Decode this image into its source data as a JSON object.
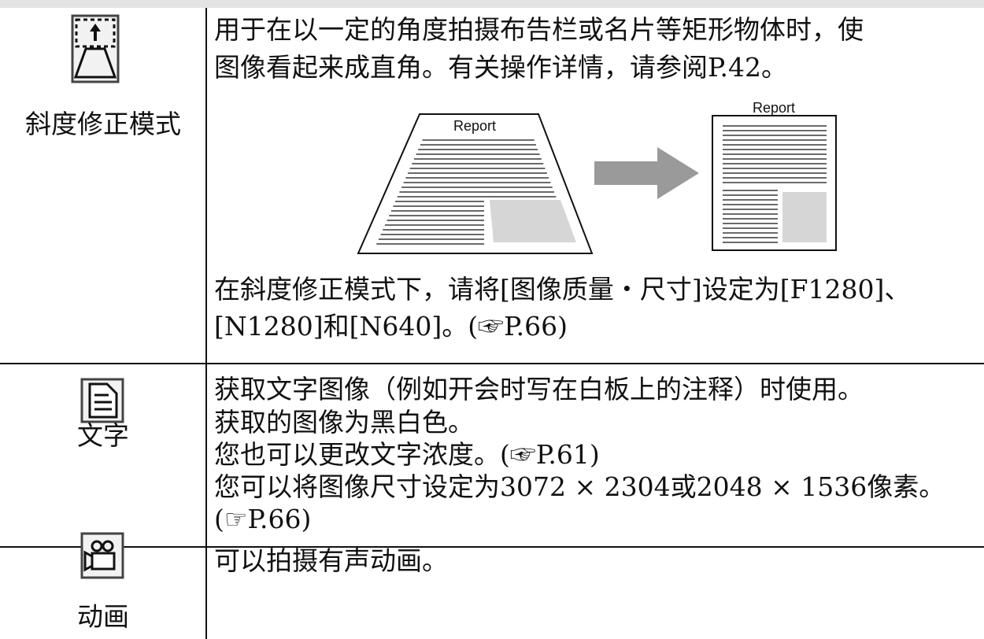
{
  "rows": [
    {
      "label": "斜度修正模式",
      "text": [
        "用于在以一定的角度拍摄布告栏或名片等矩形物体时，使",
        "图像看起来成直角。有关操作详情，请参阅P.42。"
      ],
      "figure": {
        "before": "Report",
        "after": "Report"
      },
      "note": [
        "在斜度修正模式下，请将[图像质量・尺寸]设定为[F1280]、",
        "[N1280]和[N640]。(☞P.66)"
      ]
    },
    {
      "label": "文字",
      "text": [
        "获取文字图像（例如开会时写在白板上的注释）时使用。",
        "获取的图像为黑白色。",
        "您也可以更改文字浓度。(☞P.61)",
        "您可以将图像尺寸设定为3072 × 2304或2048 × 1536像素。",
        "(☞P.66)"
      ]
    },
    {
      "label": "动画",
      "text": [
        "可以拍摄有声动画。"
      ]
    }
  ]
}
